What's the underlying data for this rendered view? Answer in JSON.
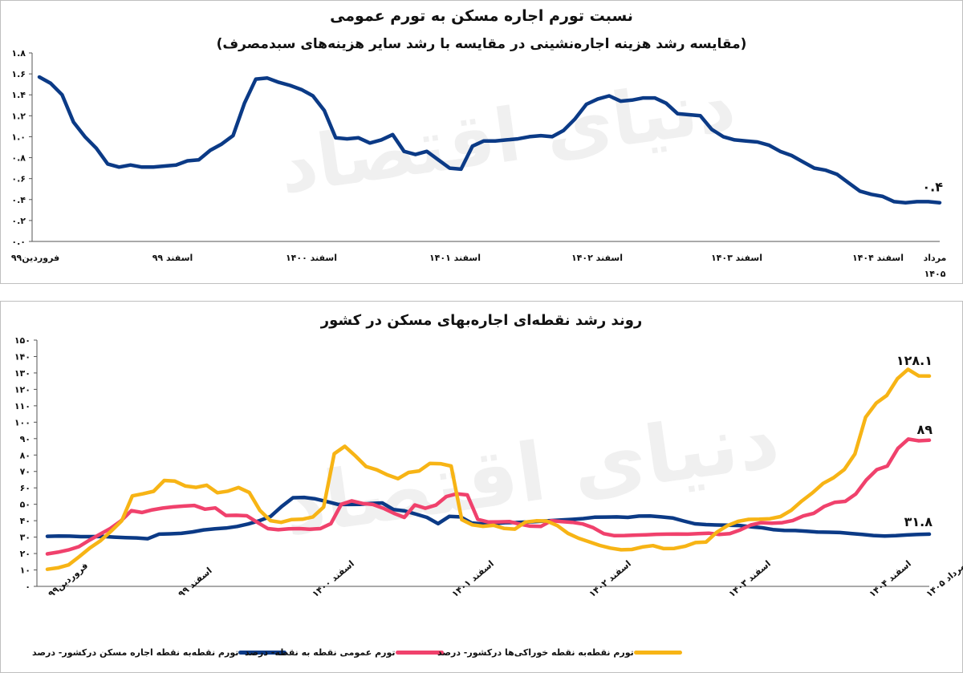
{
  "watermark": "دنیای اقتصاد",
  "chart_data": [
    {
      "type": "line",
      "title": "نسبت تورم اجاره مسکن به تورم عمومی",
      "subtitle": "(مقایسه رشد هزینه اجاره‌نشینی در مقایسه با رشد سایر هزینه‌های سبدمصرف)",
      "ylim": [
        0,
        1.8
      ],
      "yticks": [
        "۰.۰",
        "۰.۲",
        "۰.۴",
        "۰.۶",
        "۰.۸",
        "۱.۰",
        "۱.۲",
        "۱.۴",
        "۱.۶",
        "۱.۸"
      ],
      "xticks": [
        "فروردین۹۹",
        "اسفند ۹۹",
        "اسفند ۱۴۰۰",
        "اسفند ۱۴۰۱",
        "اسفند ۱۴۰۲",
        "اسفند ۱۴۰۳",
        "اسفند ۱۴۰۴",
        "مرداد ۱۴۰۵"
      ],
      "grid": false,
      "series": [
        {
          "color": "#0b3a86",
          "end_label": "۰.۴",
          "values": [
            1.57,
            1.51,
            1.4,
            1.14,
            1.0,
            0.89,
            0.74,
            0.71,
            0.73,
            0.71,
            0.71,
            0.72,
            0.73,
            0.77,
            0.78,
            0.87,
            0.93,
            1.01,
            1.32,
            1.55,
            1.56,
            1.52,
            1.49,
            1.45,
            1.39,
            1.25,
            0.99,
            0.98,
            0.99,
            0.94,
            0.97,
            1.02,
            0.86,
            0.83,
            0.86,
            0.78,
            0.7,
            0.69,
            0.91,
            0.96,
            0.96,
            0.97,
            0.98,
            1.0,
            1.01,
            1.0,
            1.06,
            1.17,
            1.31,
            1.36,
            1.39,
            1.34,
            1.35,
            1.37,
            1.37,
            1.32,
            1.22,
            1.21,
            1.2,
            1.07,
            1.0,
            0.97,
            0.96,
            0.95,
            0.92,
            0.86,
            0.82,
            0.76,
            0.7,
            0.68,
            0.64,
            0.56,
            0.48,
            0.45,
            0.43,
            0.38,
            0.37,
            0.38,
            0.38,
            0.37
          ]
        }
      ]
    },
    {
      "type": "line",
      "title": "روند رشد نقطه‌ای اجاره‌بهای مسکن در کشور",
      "ylim": [
        0,
        150
      ],
      "yticks": [
        "۰",
        "۱۰",
        "۲۰",
        "۳۰",
        "۴۰",
        "۵۰",
        "۶۰",
        "۷۰",
        "۸۰",
        "۹۰",
        "۱۰۰",
        "۱۱۰",
        "۱۲۰",
        "۱۳۰",
        "۱۴۰",
        "۱۵۰"
      ],
      "xticks": [
        "فروردین۹۹",
        "اسفند ۹۹",
        "اسفند ۱۴۰۰",
        "اسفند ۱۴۰۱",
        "اسفند ۱۴۰۲",
        "اسفند ۱۴۰۳",
        "اسفند ۱۴۰۴",
        "مرداد ۱۴۰۵"
      ],
      "grid": false,
      "legend": "bottom",
      "series": [
        {
          "name": "تورم نقطه‌به نقطه اجاره مسکن درکشور- درصد",
          "color": "#0b3a86",
          "end_label": "۳۱.۸",
          "values": [
            30.5,
            30.7,
            30.6,
            30.3,
            30.3,
            30.4,
            30.0,
            29.7,
            29.5,
            29.0,
            31.8,
            32.0,
            32.3,
            33.2,
            34.4,
            35.1,
            35.5,
            36.5,
            38.0,
            40.0,
            42.6,
            48.7,
            54.0,
            54.2,
            53.3,
            51.7,
            50.0,
            49.9,
            50.0,
            50.5,
            50.8,
            46.8,
            46.0,
            44.0,
            42.0,
            38.2,
            42.6,
            42.3,
            38.6,
            38.0,
            38.2,
            38.8,
            38.9,
            39.2,
            39.6,
            40.0,
            40.4,
            40.8,
            41.3,
            42.1,
            42.2,
            42.3,
            42.0,
            42.8,
            42.9,
            42.3,
            41.7,
            39.8,
            38.1,
            37.6,
            37.4,
            37.3,
            37.1,
            36.3,
            35.7,
            34.6,
            34.1,
            34.0,
            33.6,
            33.1,
            33.0,
            32.8,
            32.2,
            31.6,
            31.0,
            30.7,
            30.9,
            31.3,
            31.6,
            31.8
          ]
        },
        {
          "name": "تورم عمومی نقطه به نقطه- درصد",
          "color": "#f0416c",
          "end_label": "۸۹",
          "values": [
            19.8,
            20.8,
            22.2,
            24.2,
            28.1,
            31.7,
            35.3,
            39.8,
            46.1,
            45.0,
            46.6,
            47.7,
            48.4,
            48.9,
            49.3,
            47.0,
            47.8,
            43.2,
            43.3,
            43.0,
            39.0,
            35.2,
            34.5,
            35.1,
            35.2,
            34.8,
            35.2,
            38.2,
            50.0,
            52.1,
            50.5,
            49.9,
            47.6,
            44.5,
            42.0,
            49.6,
            47.6,
            49.5,
            54.7,
            56.4,
            55.7,
            40.8,
            39.2,
            39.3,
            39.5,
            37.9,
            36.7,
            36.5,
            40.0,
            39.5,
            39.0,
            38.0,
            35.7,
            32.1,
            30.9,
            31.0,
            31.2,
            31.4,
            31.7,
            31.8,
            31.9,
            31.8,
            32.1,
            32.4,
            31.6,
            32.1,
            34.4,
            37.4,
            38.8,
            38.5,
            38.8,
            40.1,
            42.9,
            44.5,
            48.7,
            51.2,
            51.8,
            56.3,
            64.8,
            71.1,
            73.3,
            84.0,
            89.7,
            88.7,
            89.0
          ]
        },
        {
          "name": "تورم نقطه‌به نقطه خوراکی‌ها درکشور- درصد",
          "color": "#f7b415",
          "end_label": "۱۲۸.۱",
          "values": [
            10.4,
            11.3,
            13.1,
            18.1,
            23.4,
            27.8,
            33.6,
            39.9,
            55.1,
            56.4,
            57.9,
            64.5,
            64.1,
            61.1,
            60.3,
            61.6,
            57.0,
            58.0,
            60.2,
            57.2,
            46.3,
            40.0,
            39.0,
            40.7,
            40.9,
            42.3,
            48.3,
            80.8,
            85.3,
            79.4,
            73.0,
            71.0,
            67.9,
            65.6,
            69.4,
            70.3,
            74.9,
            74.7,
            73.3,
            40.6,
            37.5,
            36.6,
            37.2,
            35.3,
            34.9,
            39.2,
            39.9,
            39.8,
            37.0,
            32.3,
            29.3,
            27.1,
            24.9,
            23.3,
            22.3,
            22.5,
            24.0,
            24.8,
            23.0,
            23.1,
            24.4,
            26.7,
            27.0,
            33.0,
            37.0,
            39.6,
            40.8,
            40.9,
            41.2,
            42.5,
            46.3,
            52.0,
            56.9,
            62.7,
            66.2,
            71.2,
            80.6,
            103.0,
            111.6,
            116.3,
            126.5,
            132.2,
            128.2,
            128.1
          ]
        }
      ]
    }
  ]
}
